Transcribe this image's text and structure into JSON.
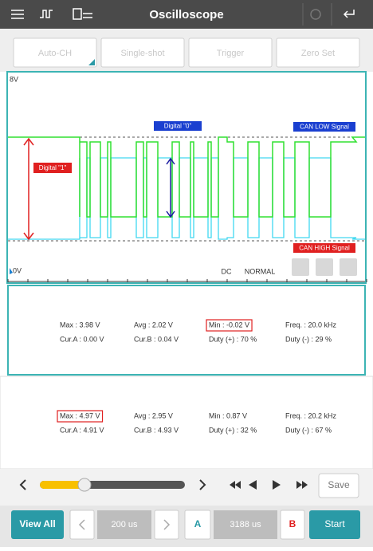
{
  "header": {
    "title": "Oscilloscope"
  },
  "toolbar": {
    "buttons": [
      "Auto-CH",
      "Single-shot",
      "Trigger",
      "Zero Set"
    ]
  },
  "scope": {
    "top_label": "8V",
    "bottom_label": "0V",
    "annotations": {
      "digital_0": "Digital \"0\"",
      "can_low": "CAN LOW Signal",
      "digital_1": "Digital \"1\"",
      "can_high": "CAN HIGH Signal"
    },
    "coupling": "DC",
    "mode": "NORMAL"
  },
  "panels": [
    {
      "max": "Max : 3.98 V",
      "avg": "Avg : 2.02 V",
      "min": "Min : -0.02 V",
      "freq": "Freq. : 20.0 kHz",
      "cur_a": "Cur.A : 0.00 V",
      "cur_b": "Cur.B : 0.04 V",
      "duty_pos": "Duty (+) : 70 %",
      "duty_neg": "Duty (-) : 29 %"
    },
    {
      "max": "Max : 4.97 V",
      "avg": "Avg : 2.95 V",
      "min": "Min : 0.87 V",
      "freq": "Freq. : 20.2 kHz",
      "cur_a": "Cur.A : 4.91 V",
      "cur_b": "Cur.B : 4.93 V",
      "duty_pos": "Duty (+) : 32 %",
      "duty_neg": "Duty (-) : 67 %"
    }
  ],
  "controls": {
    "save": "Save",
    "view_all": "View All",
    "time_div": "200 us",
    "cursor_a": "A",
    "cursor_time": "3188 us",
    "cursor_b": "B",
    "start": "Start"
  }
}
